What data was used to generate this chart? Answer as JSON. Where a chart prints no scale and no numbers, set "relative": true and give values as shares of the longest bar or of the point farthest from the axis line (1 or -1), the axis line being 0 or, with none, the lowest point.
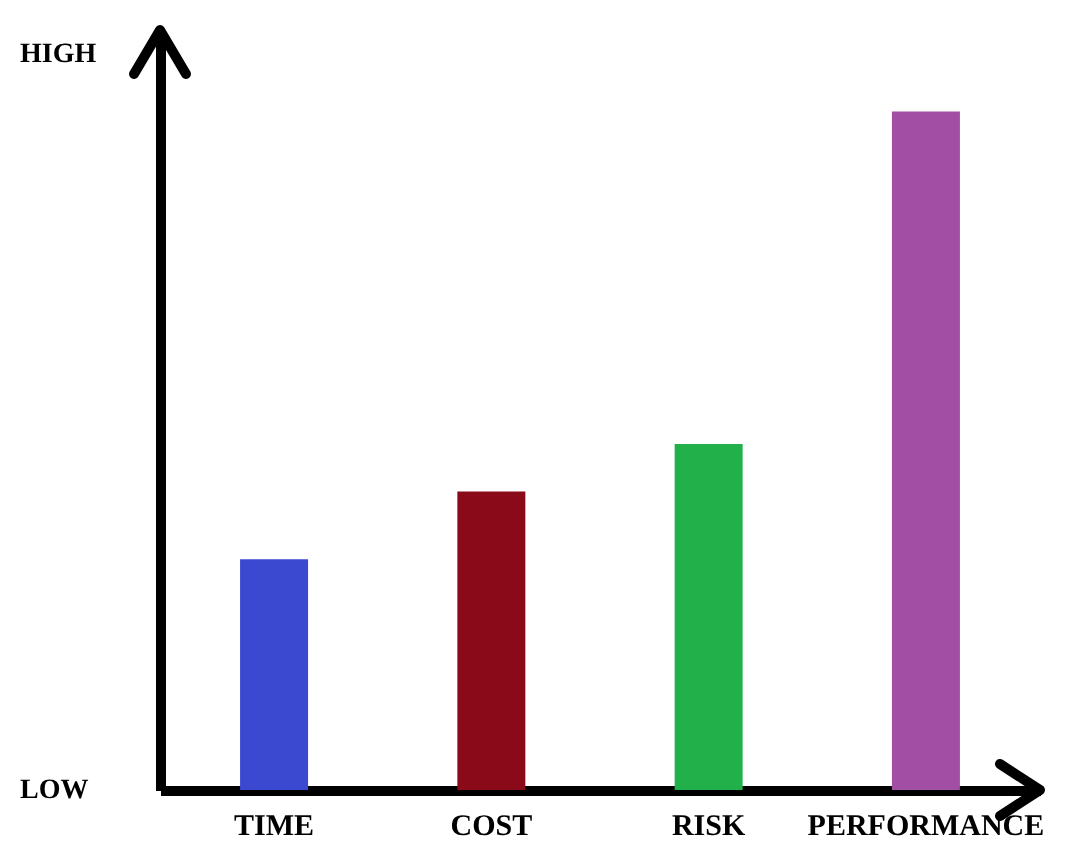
{
  "chart_data": {
    "type": "bar",
    "relative": true,
    "categories": [
      "TIME",
      "COST",
      "RISK",
      "PERFORMANCE"
    ],
    "values": [
      0.34,
      0.44,
      0.51,
      1
    ],
    "colors": [
      "#3b48d0",
      "#8b0a1a",
      "#22b04b",
      "#a24ea4"
    ],
    "annotations": [
      "HIGH",
      "LOW"
    ]
  }
}
